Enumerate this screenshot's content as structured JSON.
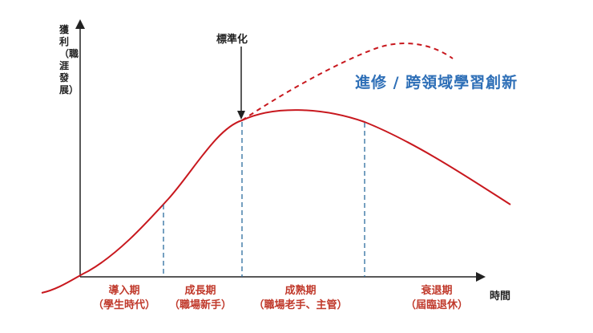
{
  "axes": {
    "y_label": "獲利（職涯發展）",
    "x_label": "時間"
  },
  "annotations": {
    "standardization": "標準化",
    "innovation": "進修 / 跨領域學習創新"
  },
  "stages": [
    {
      "name": "導入期",
      "desc": "（學生時代）"
    },
    {
      "name": "成長期",
      "desc": "（職場新手）"
    },
    {
      "name": "成熟期",
      "desc": "（職場老手、主管）"
    },
    {
      "name": "衰退期",
      "desc": "（屆臨退休）"
    }
  ],
  "colors": {
    "curve": "#c8181e",
    "innovation_text": "#2e6fb7",
    "divider": "#2b6c9e",
    "axis": "#222222"
  }
}
